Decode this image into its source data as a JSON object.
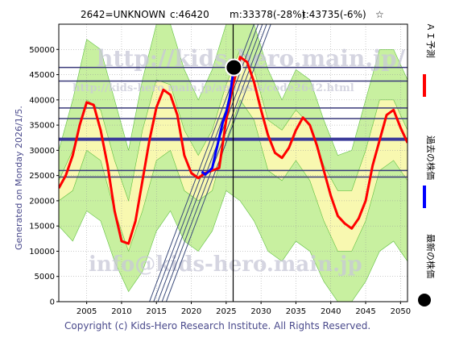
{
  "chart_data": {
    "type": "line",
    "header": {
      "code": "2642=UNKNOWN",
      "current": "c:46420",
      "min": "m:33378(-28%)",
      "target": "t:43735(-6%)",
      "star": "☆"
    },
    "generated_label": "Generated on Monday 2026/1/5.",
    "copyright": "Copyright (c) Kids-Hero Research Institute. All Rights Reserved.",
    "watermarks": [
      "http://kids-hero.main.jp/",
      "http://kids-hero.main.jp/analysis/code2642.html",
      "info@kids-hero.main.jp"
    ],
    "legend": [
      {
        "label": "ＡＩ予測",
        "color": "#ff0000",
        "kind": "line"
      },
      {
        "label": "過去の株価",
        "color": "#0000ff",
        "kind": "line"
      },
      {
        "label": "最新の株価",
        "color": "#000000",
        "kind": "dot"
      }
    ],
    "x_ticks": [
      2005,
      2010,
      2015,
      2020,
      2025,
      2030,
      2035,
      2040,
      2045,
      2050
    ],
    "y_ticks": [
      0,
      5000,
      10000,
      15000,
      20000,
      25000,
      30000,
      35000,
      40000,
      45000,
      50000
    ],
    "xlim": [
      2001,
      2051
    ],
    "ylim": [
      0,
      55000
    ],
    "grid": true,
    "vertical_marker_year": 2026,
    "latest_point": {
      "x": 2026.1,
      "y": 46420
    },
    "horizontal_levels": [
      {
        "y": 46420,
        "color": "#3a3a7a",
        "width": 1.5
      },
      {
        "y": 43735,
        "color": "#3a3a7a",
        "width": 1.5
      },
      {
        "y": 38400,
        "color": "#3a3a7a",
        "width": 1.5
      },
      {
        "y": 36300,
        "color": "#3a3a7a",
        "width": 1.5
      },
      {
        "y": 32200,
        "color": "#3a3a9a",
        "width": 4
      },
      {
        "y": 26000,
        "color": "#3a3a7a",
        "width": 1.5
      },
      {
        "y": 24700,
        "color": "#3a3a7a",
        "width": 1.5
      }
    ],
    "trend_channel": {
      "color": "#3a4a7a",
      "lines": [
        [
          [
            2014.0,
            0
          ],
          [
            2029.0,
            55000
          ]
        ],
        [
          [
            2014.6,
            0
          ],
          [
            2029.6,
            55000
          ]
        ],
        [
          [
            2015.2,
            0
          ],
          [
            2030.2,
            55000
          ]
        ],
        [
          [
            2015.8,
            0
          ],
          [
            2030.8,
            55000
          ]
        ],
        [
          [
            2016.4,
            0
          ],
          [
            2031.4,
            55000
          ]
        ]
      ]
    },
    "series": [
      {
        "name": "ＡＩ予測",
        "color": "#ff0000",
        "x": [
          2001,
          2002,
          2003,
          2004,
          2005,
          2006,
          2007,
          2008,
          2009,
          2010,
          2011,
          2012,
          2013,
          2014,
          2015,
          2016,
          2017,
          2018,
          2019,
          2020,
          2021,
          2022,
          2023,
          2024,
          2025,
          2026,
          2027,
          2028,
          2029,
          2030,
          2031,
          2032,
          2033,
          2034,
          2035,
          2036,
          2037,
          2038,
          2039,
          2040,
          2041,
          2042,
          2043,
          2044,
          2045,
          2046,
          2047,
          2048,
          2049,
          2050,
          2051
        ],
        "y": [
          22500,
          25000,
          29000,
          35000,
          39500,
          39000,
          34000,
          27000,
          18000,
          12000,
          11500,
          16000,
          24000,
          32000,
          38500,
          42000,
          41000,
          37000,
          29000,
          25500,
          24500,
          25500,
          26000,
          26500,
          36000,
          43000,
          48500,
          47500,
          43500,
          38000,
          33000,
          29500,
          28500,
          30500,
          34000,
          36500,
          35000,
          31000,
          26000,
          21000,
          17000,
          15500,
          14500,
          16500,
          20000,
          27000,
          32000,
          37000,
          38000,
          34500,
          31500
        ]
      },
      {
        "name": "過去の株価",
        "color": "#0000ff",
        "x": [
          2021.5,
          2022.0,
          2022.5,
          2023.0,
          2023.5,
          2024.0,
          2024.5,
          2025.0,
          2025.5,
          2026.1
        ],
        "y": [
          25800,
          25200,
          25800,
          26500,
          29500,
          32500,
          35500,
          37500,
          40500,
          46420
        ]
      }
    ],
    "bands": [
      {
        "label": "light-green",
        "color": "#c8f0a0",
        "x": [
          2001,
          2003,
          2005,
          2007,
          2009,
          2011,
          2013,
          2015,
          2017,
          2019,
          2021,
          2023,
          2025,
          2027,
          2029,
          2031,
          2033,
          2035,
          2037,
          2039,
          2041,
          2043,
          2045,
          2047,
          2049,
          2051
        ],
        "upper": [
          30000,
          40000,
          52000,
          50000,
          40000,
          30000,
          44000,
          55000,
          55000,
          46000,
          40000,
          46000,
          55000,
          55000,
          55000,
          46000,
          40000,
          46000,
          44000,
          36000,
          29000,
          30000,
          40000,
          50000,
          50000,
          44000
        ],
        "lower": [
          15000,
          12000,
          18000,
          16000,
          8000,
          2000,
          6000,
          14000,
          18000,
          12000,
          10000,
          14000,
          22000,
          20000,
          16000,
          10000,
          8000,
          12000,
          10000,
          4000,
          0,
          0,
          4000,
          10000,
          12000,
          8000
        ]
      },
      {
        "label": "yellow",
        "color": "#f8f8b0",
        "x": [
          2001,
          2003,
          2005,
          2007,
          2009,
          2011,
          2013,
          2015,
          2017,
          2019,
          2021,
          2023,
          2025,
          2027,
          2029,
          2031,
          2033,
          2035,
          2037,
          2039,
          2041,
          2043,
          2045,
          2047,
          2049,
          2051
        ],
        "upper": [
          24000,
          30000,
          40000,
          38000,
          28000,
          20000,
          34000,
          44000,
          43000,
          34000,
          29000,
          34000,
          43000,
          50000,
          46000,
          36000,
          34000,
          38000,
          35000,
          27000,
          22000,
          22000,
          30000,
          40000,
          40000,
          34000
        ],
        "lower": [
          20000,
          22000,
          30000,
          28000,
          18000,
          10000,
          18000,
          28000,
          30000,
          22000,
          20000,
          22000,
          32000,
          40000,
          36000,
          26000,
          24000,
          28000,
          24000,
          16000,
          10000,
          10000,
          16000,
          26000,
          28000,
          24000
        ]
      }
    ]
  }
}
